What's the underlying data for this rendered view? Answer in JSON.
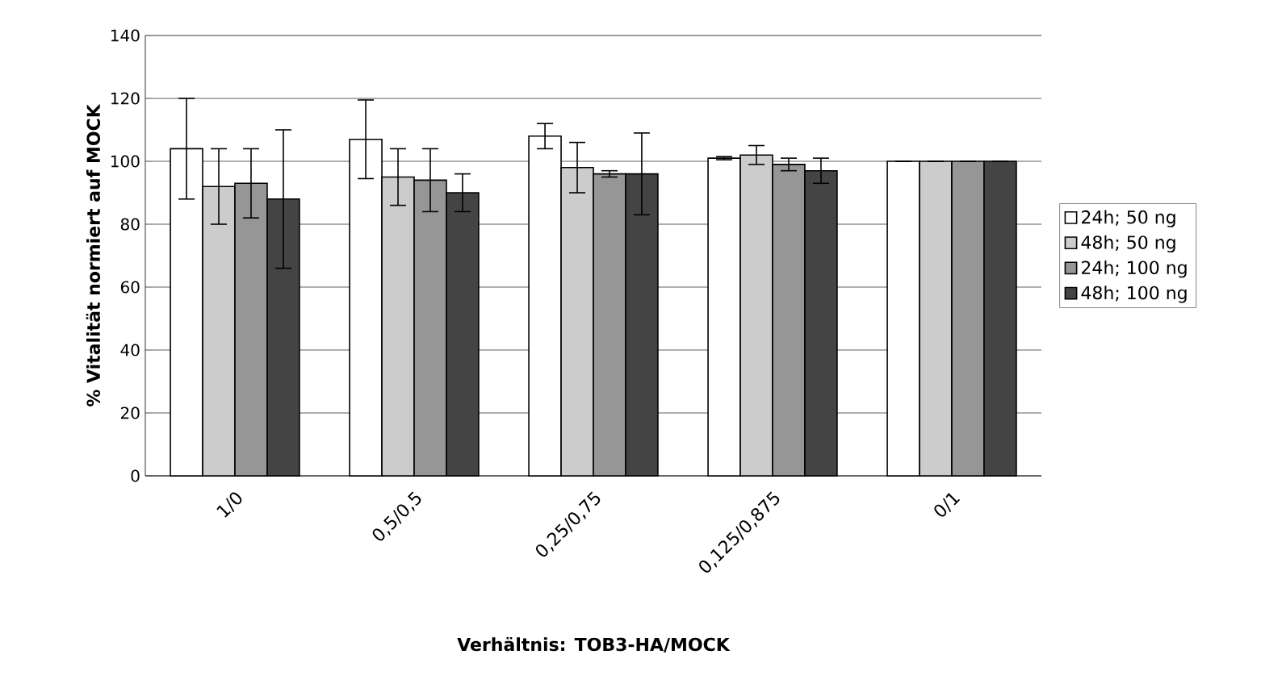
{
  "chart_data": {
    "type": "bar",
    "xlabel": "Verhältnis: TOB3-HA/MOCK",
    "ylabel": "% Vitalität normiert auf MOCK",
    "categories": [
      "1/0",
      "0,5/0,5",
      "0,25/0,75",
      "0,125/0,875",
      "0/1"
    ],
    "series": [
      {
        "name": "24h; 50 ng",
        "color": "#ffffff",
        "values": [
          104,
          107,
          108,
          101,
          100
        ],
        "errors": [
          16,
          12.5,
          4,
          0.5,
          null
        ]
      },
      {
        "name": "48h; 50 ng",
        "color": "#cccccc",
        "values": [
          92,
          95,
          98,
          102,
          100
        ],
        "errors": [
          12,
          9,
          8,
          3,
          null
        ]
      },
      {
        "name": "24h; 100 ng",
        "color": "#969696",
        "values": [
          93,
          94,
          96,
          99,
          100
        ],
        "errors": [
          11,
          10,
          1,
          2,
          null
        ]
      },
      {
        "name": "48h; 100 ng",
        "color": "#444444",
        "values": [
          88,
          90,
          96,
          97,
          100
        ],
        "errors": [
          22,
          6,
          13,
          4,
          null
        ]
      }
    ],
    "ylim": [
      0,
      140
    ],
    "yticks": [
      0,
      20,
      40,
      60,
      80,
      100,
      120,
      140
    ],
    "grid": "y",
    "legend": "right"
  }
}
